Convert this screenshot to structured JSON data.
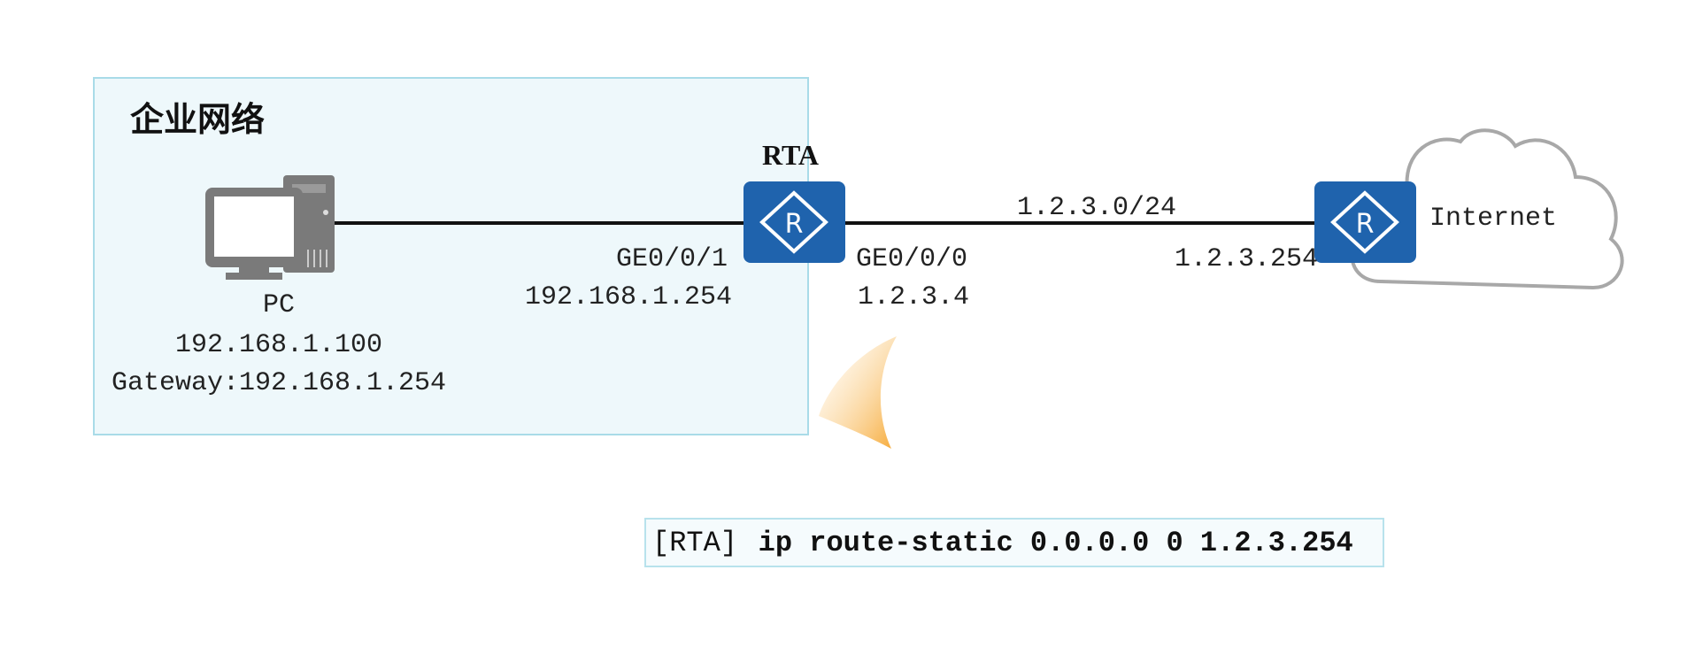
{
  "enterprise_zone": {
    "title": "企业网络"
  },
  "pc": {
    "label": "PC",
    "ip": "192.168.1.100",
    "gateway": "Gateway:192.168.1.254"
  },
  "rta": {
    "label": "RTA",
    "lan_interface": "GE0/0/1",
    "lan_ip": "192.168.1.254",
    "wan_interface": "GE0/0/0",
    "wan_ip": "1.2.3.4"
  },
  "wan_link": {
    "subnet": "1.2.3.0/24"
  },
  "isp_router": {
    "ip": "1.2.3.254"
  },
  "cloud": {
    "label": "Internet"
  },
  "command": {
    "prompt": "[RTA]",
    "text": "ip route-static 0.0.0.0 0 1.2.3.254"
  },
  "colors": {
    "router": "#1f63ad",
    "zone_fill": "#eef8fb",
    "zone_border": "#a9dbe8",
    "cloud_stroke": "#a8a8a8",
    "swoosh": "#f6b24a"
  }
}
